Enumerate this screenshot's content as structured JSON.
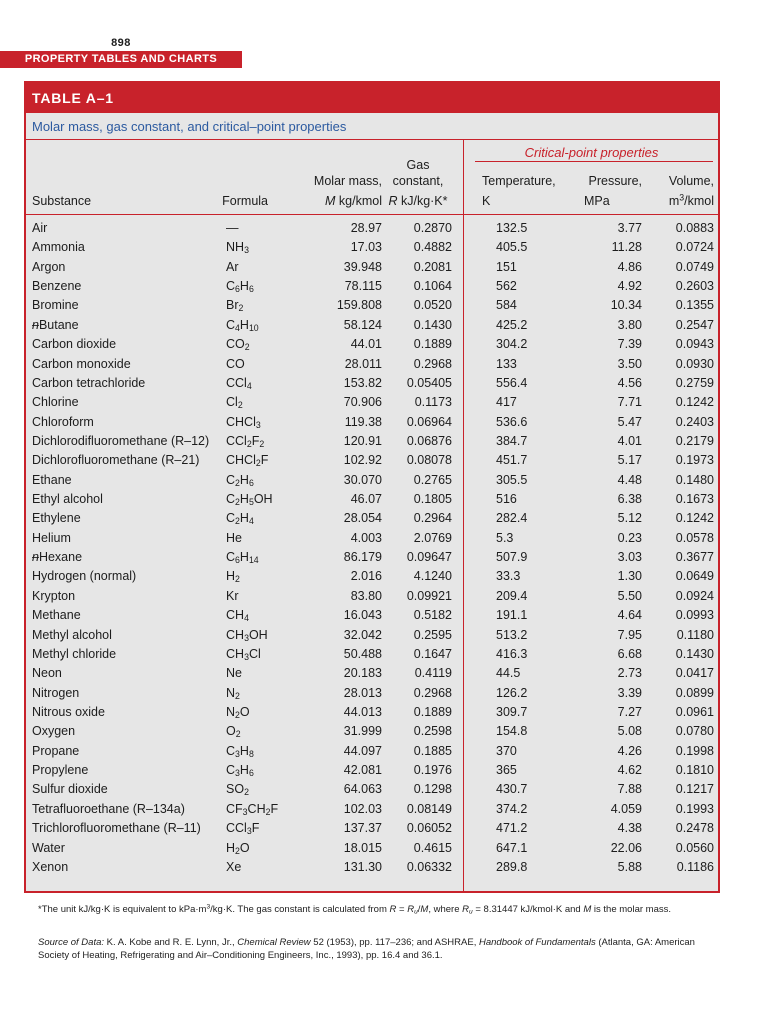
{
  "page": {
    "number": "898",
    "section": "PROPERTY TABLES AND CHARTS"
  },
  "table": {
    "id": "TABLE A–1",
    "caption": "Molar mass, gas constant, and critical–point properties",
    "group_header": "Critical-point properties",
    "headers": {
      "substance": "Substance",
      "formula": "Formula",
      "molar_mass_line1": "Molar mass,",
      "molar_mass_line2": "M kg/kmol",
      "gas_line1": "Gas",
      "gas_line2": "constant,",
      "gas_line3": "R kJ/kg·K*",
      "temperature_line1": "Temperature,",
      "temperature_line2": "K",
      "pressure_line1": "Pressure,",
      "pressure_line2": "MPa",
      "volume_line1": "Volume,",
      "volume_line2": "m³/kmol"
    },
    "rows": [
      {
        "substance": "Air",
        "formula": "—",
        "molar_mass": "28.97",
        "gas_constant": "0.2870",
        "temperature": "132.5",
        "pressure": "3.77",
        "volume": "0.0883"
      },
      {
        "substance": "Ammonia",
        "formula": "NH3",
        "molar_mass": "17.03",
        "gas_constant": "0.4882",
        "temperature": "405.5",
        "pressure": "11.28",
        "volume": "0.0724"
      },
      {
        "substance": "Argon",
        "formula": "Ar",
        "molar_mass": "39.948",
        "gas_constant": "0.2081",
        "temperature": "151",
        "pressure": "4.86",
        "volume": "0.0749"
      },
      {
        "substance": "Benzene",
        "formula": "C6H6",
        "molar_mass": "78.115",
        "gas_constant": "0.1064",
        "temperature": "562",
        "pressure": "4.92",
        "volume": "0.2603"
      },
      {
        "substance": "Bromine",
        "formula": "Br2",
        "molar_mass": "159.808",
        "gas_constant": "0.0520",
        "temperature": "584",
        "pressure": "10.34",
        "volume": "0.1355"
      },
      {
        "substance": "n–Butane",
        "formula": "C4H10",
        "molar_mass": "58.124",
        "gas_constant": "0.1430",
        "temperature": "425.2",
        "pressure": "3.80",
        "volume": "0.2547"
      },
      {
        "substance": "Carbon dioxide",
        "formula": "CO2",
        "molar_mass": "44.01",
        "gas_constant": "0.1889",
        "temperature": "304.2",
        "pressure": "7.39",
        "volume": "0.0943"
      },
      {
        "substance": "Carbon monoxide",
        "formula": "CO",
        "molar_mass": "28.011",
        "gas_constant": "0.2968",
        "temperature": "133",
        "pressure": "3.50",
        "volume": "0.0930"
      },
      {
        "substance": "Carbon tetrachloride",
        "formula": "CCl4",
        "molar_mass": "153.82",
        "gas_constant": "0.05405",
        "temperature": "556.4",
        "pressure": "4.56",
        "volume": "0.2759"
      },
      {
        "substance": "Chlorine",
        "formula": "Cl2",
        "molar_mass": "70.906",
        "gas_constant": "0.1173",
        "temperature": "417",
        "pressure": "7.71",
        "volume": "0.1242"
      },
      {
        "substance": "Chloroform",
        "formula": "CHCl3",
        "molar_mass": "119.38",
        "gas_constant": "0.06964",
        "temperature": "536.6",
        "pressure": "5.47",
        "volume": "0.2403"
      },
      {
        "substance": "Dichlorodifluoromethane (R–12)",
        "formula": "CCl2F2",
        "molar_mass": "120.91",
        "gas_constant": "0.06876",
        "temperature": "384.7",
        "pressure": "4.01",
        "volume": "0.2179"
      },
      {
        "substance": "Dichlorofluoromethane (R–21)",
        "formula": "CHCl2F",
        "molar_mass": "102.92",
        "gas_constant": "0.08078",
        "temperature": "451.7",
        "pressure": "5.17",
        "volume": "0.1973"
      },
      {
        "substance": "Ethane",
        "formula": "C2H6",
        "molar_mass": "30.070",
        "gas_constant": "0.2765",
        "temperature": "305.5",
        "pressure": "4.48",
        "volume": "0.1480"
      },
      {
        "substance": "Ethyl alcohol",
        "formula": "C2H5OH",
        "molar_mass": "46.07",
        "gas_constant": "0.1805",
        "temperature": "516",
        "pressure": "6.38",
        "volume": "0.1673"
      },
      {
        "substance": "Ethylene",
        "formula": "C2H4",
        "molar_mass": "28.054",
        "gas_constant": "0.2964",
        "temperature": "282.4",
        "pressure": "5.12",
        "volume": "0.1242"
      },
      {
        "substance": "Helium",
        "formula": "He",
        "molar_mass": "4.003",
        "gas_constant": "2.0769",
        "temperature": "5.3",
        "pressure": "0.23",
        "volume": "0.0578"
      },
      {
        "substance": "n–Hexane",
        "formula": "C6H14",
        "molar_mass": "86.179",
        "gas_constant": "0.09647",
        "temperature": "507.9",
        "pressure": "3.03",
        "volume": "0.3677"
      },
      {
        "substance": "Hydrogen (normal)",
        "formula": "H2",
        "molar_mass": "2.016",
        "gas_constant": "4.1240",
        "temperature": "33.3",
        "pressure": "1.30",
        "volume": "0.0649"
      },
      {
        "substance": "Krypton",
        "formula": "Kr",
        "molar_mass": "83.80",
        "gas_constant": "0.09921",
        "temperature": "209.4",
        "pressure": "5.50",
        "volume": "0.0924"
      },
      {
        "substance": "Methane",
        "formula": "CH4",
        "molar_mass": "16.043",
        "gas_constant": "0.5182",
        "temperature": "191.1",
        "pressure": "4.64",
        "volume": "0.0993"
      },
      {
        "substance": "Methyl alcohol",
        "formula": "CH3OH",
        "molar_mass": "32.042",
        "gas_constant": "0.2595",
        "temperature": "513.2",
        "pressure": "7.95",
        "volume": "0.1180"
      },
      {
        "substance": "Methyl chloride",
        "formula": "CH3Cl",
        "molar_mass": "50.488",
        "gas_constant": "0.1647",
        "temperature": "416.3",
        "pressure": "6.68",
        "volume": "0.1430"
      },
      {
        "substance": "Neon",
        "formula": "Ne",
        "molar_mass": "20.183",
        "gas_constant": "0.4119",
        "temperature": "44.5",
        "pressure": "2.73",
        "volume": "0.0417"
      },
      {
        "substance": "Nitrogen",
        "formula": "N2",
        "molar_mass": "28.013",
        "gas_constant": "0.2968",
        "temperature": "126.2",
        "pressure": "3.39",
        "volume": "0.0899"
      },
      {
        "substance": "Nitrous oxide",
        "formula": "N2O",
        "molar_mass": "44.013",
        "gas_constant": "0.1889",
        "temperature": "309.7",
        "pressure": "7.27",
        "volume": "0.0961"
      },
      {
        "substance": "Oxygen",
        "formula": "O2",
        "molar_mass": "31.999",
        "gas_constant": "0.2598",
        "temperature": "154.8",
        "pressure": "5.08",
        "volume": "0.0780"
      },
      {
        "substance": "Propane",
        "formula": "C3H8",
        "molar_mass": "44.097",
        "gas_constant": "0.1885",
        "temperature": "370",
        "pressure": "4.26",
        "volume": "0.1998"
      },
      {
        "substance": "Propylene",
        "formula": "C3H6",
        "molar_mass": "42.081",
        "gas_constant": "0.1976",
        "temperature": "365",
        "pressure": "4.62",
        "volume": "0.1810"
      },
      {
        "substance": "Sulfur dioxide",
        "formula": "SO2",
        "molar_mass": "64.063",
        "gas_constant": "0.1298",
        "temperature": "430.7",
        "pressure": "7.88",
        "volume": "0.1217"
      },
      {
        "substance": "Tetrafluoroethane (R–134a)",
        "formula": "CF3CH2F",
        "molar_mass": "102.03",
        "gas_constant": "0.08149",
        "temperature": "374.2",
        "pressure": "4.059",
        "volume": "0.1993"
      },
      {
        "substance": "Trichlorofluoromethane (R–11)",
        "formula": "CCl3F",
        "molar_mass": "137.37",
        "gas_constant": "0.06052",
        "temperature": "471.2",
        "pressure": "4.38",
        "volume": "0.2478"
      },
      {
        "substance": "Water",
        "formula": "H2O",
        "molar_mass": "18.015",
        "gas_constant": "0.4615",
        "temperature": "647.1",
        "pressure": "22.06",
        "volume": "0.0560"
      },
      {
        "substance": "Xenon",
        "formula": "Xe",
        "molar_mass": "131.30",
        "gas_constant": "0.06332",
        "temperature": "289.8",
        "pressure": "5.88",
        "volume": "0.1186"
      }
    ]
  },
  "footnote": "*The unit kJ/kg·K is equivalent to kPa·m³/kg·K. The gas constant is calculated from R = Ru/M, where Ru = 8.31447 kJ/kmol·K and M is the molar mass.",
  "source": "Source of Data: K. A. Kobe and R. E. Lynn, Jr., Chemical Review 52 (1953), pp. 117–236; and ASHRAE, Handbook of Fundamentals (Atlanta, GA: American Society of Heating, Refrigerating and Air–Conditioning Engineers, Inc., 1993), pp. 16.4 and 36.1.",
  "colors": {
    "accent": "#c8222b",
    "caption_blue": "#2c5aa0",
    "table_bg": "#e6e6e6"
  }
}
